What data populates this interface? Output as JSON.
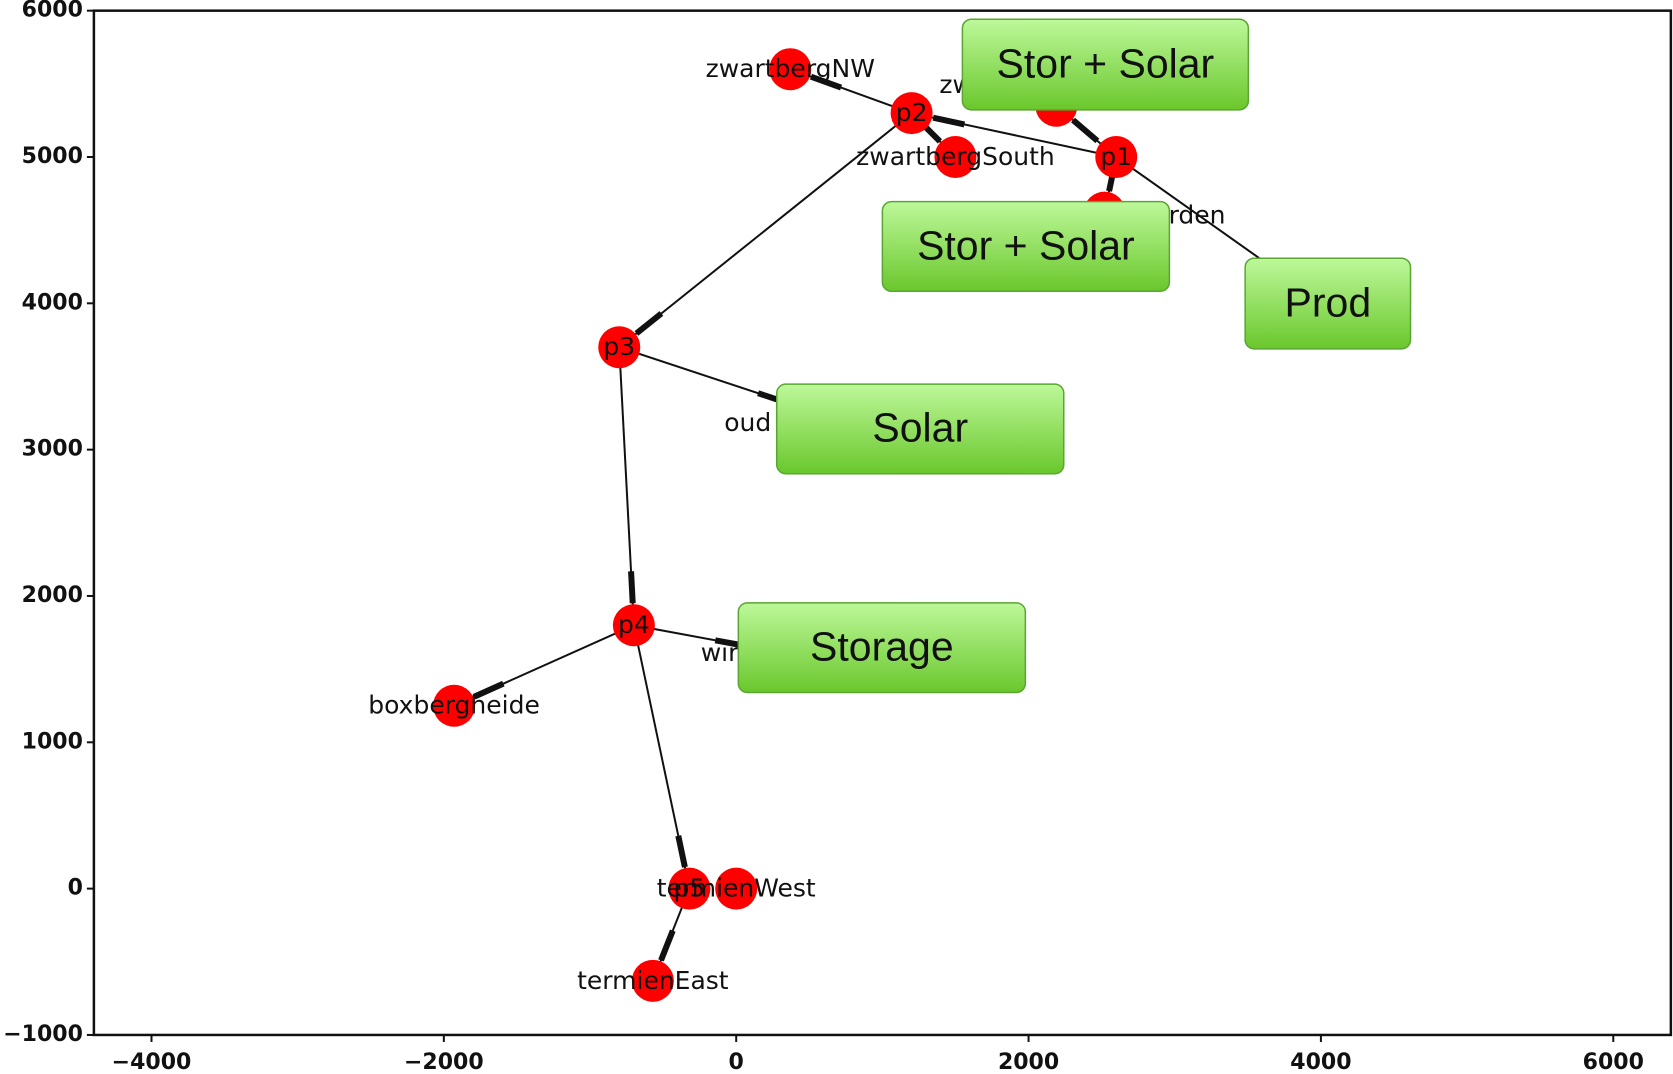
{
  "chart_data": {
    "type": "network",
    "xlim": [
      -4394,
      6394
    ],
    "ylim": [
      -1000,
      6000
    ],
    "xticks": [
      {
        "value": -4000,
        "label": "−4000"
      },
      {
        "value": -2000,
        "label": "−2000"
      },
      0,
      2000,
      4000,
      6000
    ],
    "yticks": [
      {
        "value": -1000,
        "label": "−1000"
      },
      0,
      1000,
      2000,
      3000,
      4000,
      5000,
      6000
    ],
    "node_color": "#ff0000",
    "nodes": [
      {
        "label": "zwartbergNW",
        "x": 370,
        "y": 5600
      },
      {
        "label": "p2",
        "x": 1200,
        "y": 5300
      },
      {
        "label": "zwartbergSouth",
        "x": 1500,
        "y": 5000
      },
      {
        "label": "p1",
        "x": 2600,
        "y": 5000
      },
      {
        "label": "zw",
        "x": 2190,
        "y": 5350
      },
      {
        "label": "rden",
        "x": 2520,
        "y": 4620
      },
      {
        "x": 4015,
        "y": 4000
      },
      {
        "label": "p3",
        "x": -800,
        "y": 3700
      },
      {
        "label": "oud",
        "x": 500,
        "y": 3270
      },
      {
        "label": "p4",
        "x": -700,
        "y": 1800
      },
      {
        "label": "wir",
        "x": 220,
        "y": 1630
      },
      {
        "label": "boxbergheide",
        "x": -1930,
        "y": 1250
      },
      {
        "label": "p5",
        "x": -320,
        "y": 0
      },
      {
        "label": "termienWest",
        "x": 0,
        "y": 0
      },
      {
        "label": "termienEast",
        "x": -570,
        "y": -630
      }
    ],
    "edges": [
      [
        1,
        0
      ],
      [
        1,
        2
      ],
      [
        3,
        1
      ],
      [
        1,
        7
      ],
      [
        3,
        4
      ],
      [
        3,
        5
      ],
      [
        3,
        6
      ],
      [
        7,
        8
      ],
      [
        7,
        9
      ],
      [
        9,
        10
      ],
      [
        9,
        11
      ],
      [
        9,
        12
      ],
      [
        12,
        14
      ]
    ],
    "annotations": [
      "Stor + Solar",
      "Stor + Solar",
      "Prod",
      "Solar",
      "Storage"
    ]
  }
}
